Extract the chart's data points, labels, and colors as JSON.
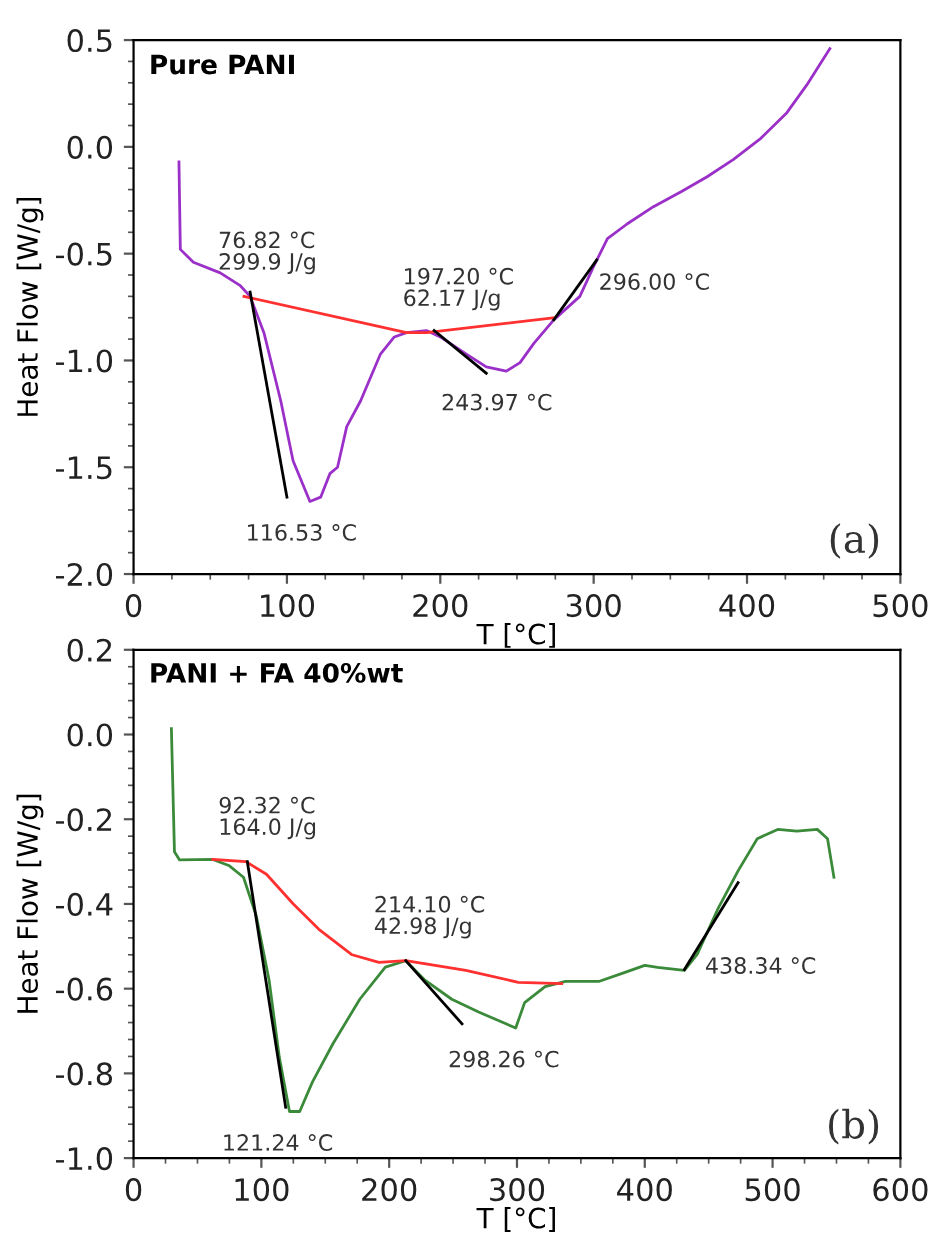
{
  "chart_data": [
    {
      "type": "line",
      "title": "Pure PANI",
      "xlabel": "T [°C]",
      "ylabel": "Heat Flow [W/g]",
      "xlim": [
        0,
        500
      ],
      "xticks": [
        0,
        100,
        200,
        300,
        400,
        500
      ],
      "ylim": [
        -2.0,
        0.5
      ],
      "yticks": [
        {
          "value": -2.0,
          "label": "-2.0"
        },
        {
          "value": -1.5,
          "label": "-1.5"
        },
        {
          "value": -1.0,
          "label": "-1.0"
        },
        {
          "value": -0.5,
          "label": "-0.5"
        },
        {
          "value": 0.0,
          "label": "0.0"
        },
        {
          "value": 0.5,
          "label": "0.5"
        }
      ],
      "grid": false,
      "series": [
        {
          "color": "#9b30c8",
          "x": [
            29.6,
            30.5,
            39,
            56.5,
            69.6,
            76,
            85,
            96,
            104,
            115,
            122,
            128,
            133,
            139,
            148,
            161,
            170,
            178,
            191,
            200,
            217,
            230,
            243,
            252,
            261,
            274,
            291,
            300,
            309,
            322,
            339,
            357,
            374,
            391,
            409,
            426,
            439,
            454
          ],
          "values": [
            -0.07,
            -0.48,
            -0.54,
            -0.59,
            -0.65,
            -0.7,
            -0.87,
            -1.19,
            -1.47,
            -1.66,
            -1.64,
            -1.53,
            -1.5,
            -1.31,
            -1.19,
            -0.97,
            -0.89,
            -0.87,
            -0.86,
            -0.89,
            -0.97,
            -1.03,
            -1.05,
            -1.01,
            -0.92,
            -0.81,
            -0.7,
            -0.56,
            -0.43,
            -0.36,
            -0.28,
            -0.21,
            -0.14,
            -0.06,
            0.04,
            0.16,
            0.29,
            0.46
          ]
        },
        {
          "color": "#ff3030",
          "x": [
            72,
            178,
            191,
            274
          ],
          "values": [
            -0.7,
            -0.87,
            -0.87,
            -0.8
          ]
        },
        {
          "color": "#000000",
          "x": [
            76,
            100
          ],
          "values": [
            -0.68,
            -1.64
          ]
        },
        {
          "color": "#000000",
          "x": [
            196,
            230
          ],
          "values": [
            -0.86,
            -1.06
          ]
        },
        {
          "color": "#000000",
          "x": [
            274,
            302
          ],
          "values": [
            -0.81,
            -0.53
          ]
        }
      ],
      "annotations": [
        {
          "text": "76.82 °C\n299.9 J/g",
          "x": 76.82,
          "y": -0.7
        },
        {
          "text": "197.20 °C\n62.17 J/g",
          "x": 197.2,
          "y": -0.87
        },
        {
          "text": "296.00 °C",
          "x": 296,
          "y": -0.64
        },
        {
          "text": "243.97 °C",
          "x": 243.97,
          "y": -1.05
        },
        {
          "text": "116.53 °C",
          "x": 116.53,
          "y": -1.66
        },
        "(a)"
      ]
    },
    {
      "type": "line",
      "title": "PANI + FA 40%wt",
      "xlabel": "T [°C]",
      "ylabel": "Heat Flow [W/g]",
      "xlim": [
        0,
        600
      ],
      "xticks": [
        0,
        100,
        200,
        300,
        400,
        500,
        600
      ],
      "ylim": [
        -1.0,
        0.2
      ],
      "yticks": [
        {
          "value": -1.0,
          "label": "-1.0"
        },
        {
          "value": -0.8,
          "label": "-0.8"
        },
        {
          "value": -0.6,
          "label": "-0.6"
        },
        {
          "value": -0.4,
          "label": "-0.4"
        },
        {
          "value": -0.2,
          "label": "-0.2"
        },
        {
          "value": 0.0,
          "label": "0.0"
        },
        {
          "value": 0.2,
          "label": "0.2"
        }
      ],
      "grid": false,
      "series": [
        {
          "color": "#3a8a3a",
          "x": [
            29.6,
            32,
            36,
            62,
            75,
            86,
            96,
            106,
            114,
            122,
            130,
            140,
            156,
            177,
            197,
            213,
            228,
            249,
            270,
            299,
            306,
            322,
            338,
            364,
            384,
            400,
            410,
            431,
            441,
            457,
            473,
            488,
            504,
            519,
            535,
            543,
            548
          ],
          "values": [
            0.014,
            -0.277,
            -0.296,
            -0.295,
            -0.31,
            -0.337,
            -0.428,
            -0.579,
            -0.761,
            -0.89,
            -0.89,
            -0.82,
            -0.73,
            -0.625,
            -0.549,
            -0.534,
            -0.58,
            -0.625,
            -0.655,
            -0.693,
            -0.633,
            -0.595,
            -0.583,
            -0.583,
            -0.562,
            -0.545,
            -0.55,
            -0.557,
            -0.519,
            -0.413,
            -0.322,
            -0.246,
            -0.224,
            -0.228,
            -0.224,
            -0.246,
            -0.337
          ]
        },
        {
          "color": "#ff3030",
          "x": [
            62,
            88,
            104,
            125,
            145,
            171,
            192,
            213,
            260,
            301,
            335
          ],
          "values": [
            -0.295,
            -0.3,
            -0.33,
            -0.4,
            -0.46,
            -0.52,
            -0.538,
            -0.534,
            -0.557,
            -0.585,
            -0.588
          ]
        },
        {
          "color": "#000000",
          "x": [
            89,
            119
          ],
          "values": [
            -0.3,
            -0.88
          ]
        },
        {
          "color": "#000000",
          "x": [
            213,
            257
          ],
          "values": [
            -0.534,
            -0.683
          ]
        },
        {
          "color": "#000000",
          "x": [
            431,
            473
          ],
          "values": [
            -0.555,
            -0.35
          ]
        }
      ],
      "annotations": [
        {
          "text": "92.32 °C\n164.0 J/g",
          "x": 92.32,
          "y": -0.3
        },
        {
          "text": "214.10 °C\n42.98 J/g",
          "x": 214.1,
          "y": -0.534
        },
        {
          "text": "298.26 °C",
          "x": 298.26,
          "y": -0.693
        },
        {
          "text": "121.24 °C",
          "x": 121.24,
          "y": -0.89
        },
        {
          "text": "438.34 °C",
          "x": 438.34,
          "y": -0.55
        },
        "(b)"
      ]
    }
  ]
}
